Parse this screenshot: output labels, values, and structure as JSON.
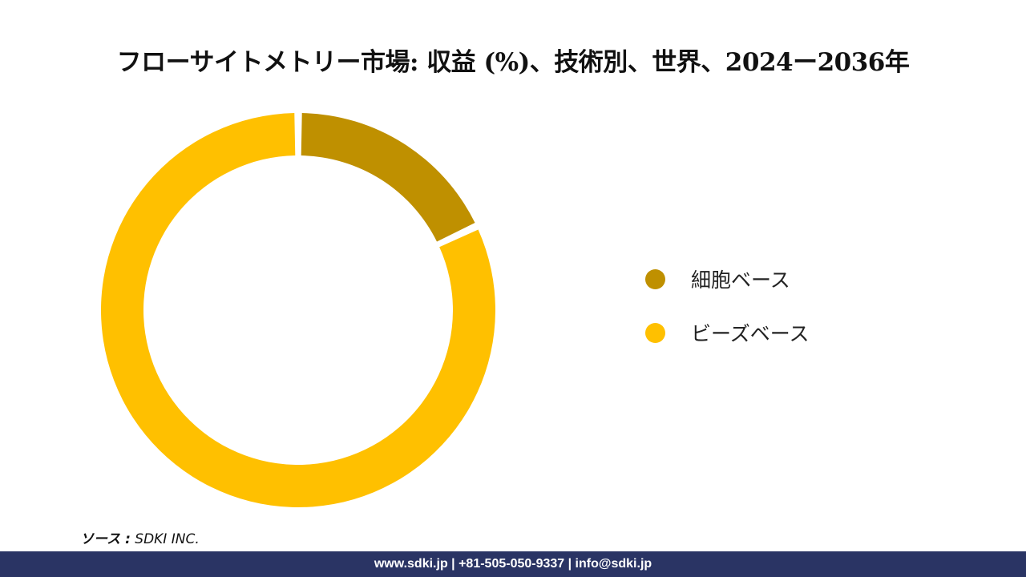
{
  "chart_data": {
    "type": "pie",
    "title": "フローサイトメトリー市場: 収益 (%)、技術別、世界、2024ー2036年",
    "categories": [
      "細胞ベース",
      "ビーズベース"
    ],
    "values": [
      18,
      82
    ],
    "colors": [
      "#bf9000",
      "#ffc000"
    ],
    "legend_position": "right"
  },
  "source": {
    "label": "ソース :",
    "value": "SDKI INC."
  },
  "footer": {
    "text": "www.sdki.jp | +81-505-050-9337 | info@sdki.jp"
  }
}
